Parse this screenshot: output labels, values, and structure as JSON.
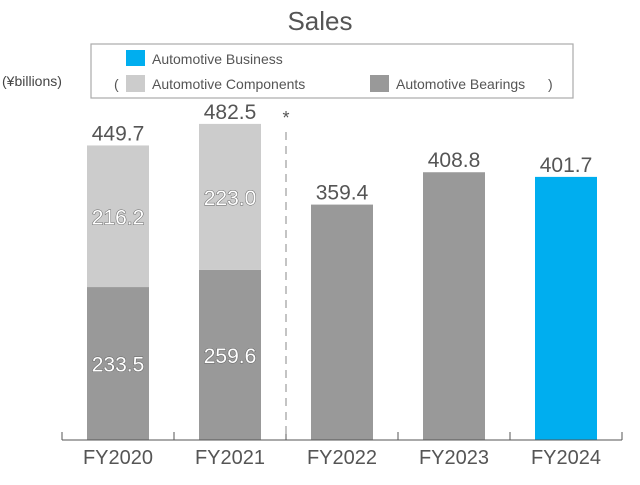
{
  "chart_data": {
    "type": "bar",
    "stacked": true,
    "title": "Sales",
    "ylabel": "(¥billions)",
    "categories": [
      "FY2020",
      "FY2021",
      "FY2022",
      "FY2023",
      "FY2024"
    ],
    "series": [
      {
        "name": "Automotive Bearings",
        "color": "#999999",
        "values": [
          233.5,
          259.6,
          359.4,
          408.8,
          null
        ]
      },
      {
        "name": "Automotive Components",
        "color": "#cccccc",
        "values": [
          216.2,
          223.0,
          null,
          null,
          null
        ]
      },
      {
        "name": "Automotive Business",
        "color": "#00aeef",
        "values": [
          null,
          null,
          null,
          null,
          401.7
        ]
      }
    ],
    "totals": [
      449.7,
      482.5,
      359.4,
      408.8,
      401.7
    ],
    "segment_labels": {
      "Automotive Bearings": [
        "233.5",
        "259.6",
        null,
        null,
        null
      ],
      "Automotive Components": [
        "216.2",
        "223.0",
        null,
        null,
        null
      ]
    },
    "total_labels": [
      "449.7",
      "482.5",
      "359.4",
      "408.8",
      "401.7"
    ],
    "annotation": "*",
    "divider_after_category": "FY2021",
    "legend": {
      "placement": "top",
      "entries": [
        {
          "label": "Automotive Business",
          "color": "#00aeef"
        },
        {
          "label": "Automotive Components",
          "color": "#cccccc"
        },
        {
          "label": "Automotive Bearings",
          "color": "#999999"
        }
      ],
      "open_paren": "(",
      "close_paren": ")"
    },
    "ylim": [
      0,
      500
    ],
    "grid": false
  }
}
